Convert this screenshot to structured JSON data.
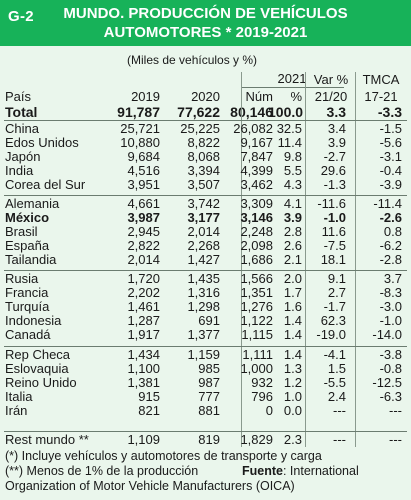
{
  "header": {
    "code": "G-2",
    "title_line1": "MUNDO. PRODUCCIÓN DE VEHÍCULOS",
    "title_line2": "AUTOMOTORES * 2019-2021"
  },
  "units": "(Miles de vehículos y %)",
  "columns": {
    "group_2021": "2021",
    "var_top": "Var %",
    "tmca_top": "TMCA",
    "country": "País",
    "y2019": "2019",
    "y2020": "2020",
    "num": "Núm",
    "pct": "%",
    "var_bottom": "21/20",
    "tmca_bottom": "17-21"
  },
  "total": {
    "country": "Total",
    "y2019": "91,787",
    "y2020": "77,622",
    "num": "80,146",
    "pct": "100.0",
    "var": "3.3",
    "tmca": "-3.3"
  },
  "groups": [
    [
      {
        "country": "China",
        "y2019": "25,721",
        "y2020": "25,225",
        "num": "26,082",
        "pct": "32.5",
        "var": "3.4",
        "tmca": "-1.5"
      },
      {
        "country": "Edos Unidos",
        "y2019": "10,880",
        "y2020": "8,822",
        "num": "9,167",
        "pct": "11.4",
        "var": "3.9",
        "tmca": "-5.6"
      },
      {
        "country": "Japón",
        "y2019": "9,684",
        "y2020": "8,068",
        "num": "7,847",
        "pct": "9.8",
        "var": "-2.7",
        "tmca": "-3.1"
      },
      {
        "country": "India",
        "y2019": "4,516",
        "y2020": "3,394",
        "num": "4,399",
        "pct": "5.5",
        "var": "29.6",
        "tmca": "-0.4"
      },
      {
        "country": "Corea del Sur",
        "y2019": "3,951",
        "y2020": "3,507",
        "num": "3,462",
        "pct": "4.3",
        "var": "-1.3",
        "tmca": "-3.9"
      }
    ],
    [
      {
        "country": "Alemania",
        "y2019": "4,661",
        "y2020": "3,742",
        "num": "3,309",
        "pct": "4.1",
        "var": "-11.6",
        "tmca": "-11.4"
      },
      {
        "country": "México",
        "y2019": "3,987",
        "y2020": "3,177",
        "num": "3,146",
        "pct": "3.9",
        "var": "-1.0",
        "tmca": "-2.6",
        "bold": true
      },
      {
        "country": "Brasil",
        "y2019": "2,945",
        "y2020": "2,014",
        "num": "2,248",
        "pct": "2.8",
        "var": "11.6",
        "tmca": "0.8"
      },
      {
        "country": "España",
        "y2019": "2,822",
        "y2020": "2,268",
        "num": "2,098",
        "pct": "2.6",
        "var": "-7.5",
        "tmca": "-6.2"
      },
      {
        "country": "Tailandia",
        "y2019": "2,014",
        "y2020": "1,427",
        "num": "1,686",
        "pct": "2.1",
        "var": "18.1",
        "tmca": "-2.8"
      }
    ],
    [
      {
        "country": "Rusia",
        "y2019": "1,720",
        "y2020": "1,435",
        "num": "1,566",
        "pct": "2.0",
        "var": "9.1",
        "tmca": "3.7"
      },
      {
        "country": "Francia",
        "y2019": "2,202",
        "y2020": "1,316",
        "num": "1,351",
        "pct": "1.7",
        "var": "2.7",
        "tmca": "-8.3"
      },
      {
        "country": "Turquía",
        "y2019": "1,461",
        "y2020": "1,298",
        "num": "1,276",
        "pct": "1.6",
        "var": "-1.7",
        "tmca": "-3.0"
      },
      {
        "country": "Indonesia",
        "y2019": "1,287",
        "y2020": "691",
        "num": "1,122",
        "pct": "1.4",
        "var": "62.3",
        "tmca": "-1.0"
      },
      {
        "country": "Canadá",
        "y2019": "1,917",
        "y2020": "1,377",
        "num": "1,115",
        "pct": "1.4",
        "var": "-19.0",
        "tmca": "-14.0"
      }
    ],
    [
      {
        "country": "Rep Checa",
        "y2019": "1,434",
        "y2020": "1,159",
        "num": "1,111",
        "pct": "1.4",
        "var": "-4.1",
        "tmca": "-3.8"
      },
      {
        "country": "Eslovaquia",
        "y2019": "1,100",
        "y2020": "985",
        "num": "1,000",
        "pct": "1.3",
        "var": "1.5",
        "tmca": "-0.8"
      },
      {
        "country": "Reino Unido",
        "y2019": "1,381",
        "y2020": "987",
        "num": "932",
        "pct": "1.2",
        "var": "-5.5",
        "tmca": "-12.5"
      },
      {
        "country": "Italia",
        "y2019": "915",
        "y2020": "777",
        "num": "796",
        "pct": "1.0",
        "var": "2.4",
        "tmca": "-6.3"
      },
      {
        "country": "Irán",
        "y2019": "821",
        "y2020": "881",
        "num": "0",
        "pct": "0.0",
        "var": "---",
        "tmca": "---"
      }
    ]
  ],
  "rest": {
    "country": "Rest mundo **",
    "y2019": "1,109",
    "y2020": "819",
    "num": "1,829",
    "pct": "2.3",
    "var": "---",
    "tmca": "---"
  },
  "footnotes": {
    "note1": "(*) Incluye vehículos y automotores de transporte y carga",
    "note2": "(**) Menos de 1% de la producción",
    "source_label": "Fuente",
    "source_text": ": International",
    "note3": "Organization of Motor Vehicle Manufacturers (OICA)"
  }
}
